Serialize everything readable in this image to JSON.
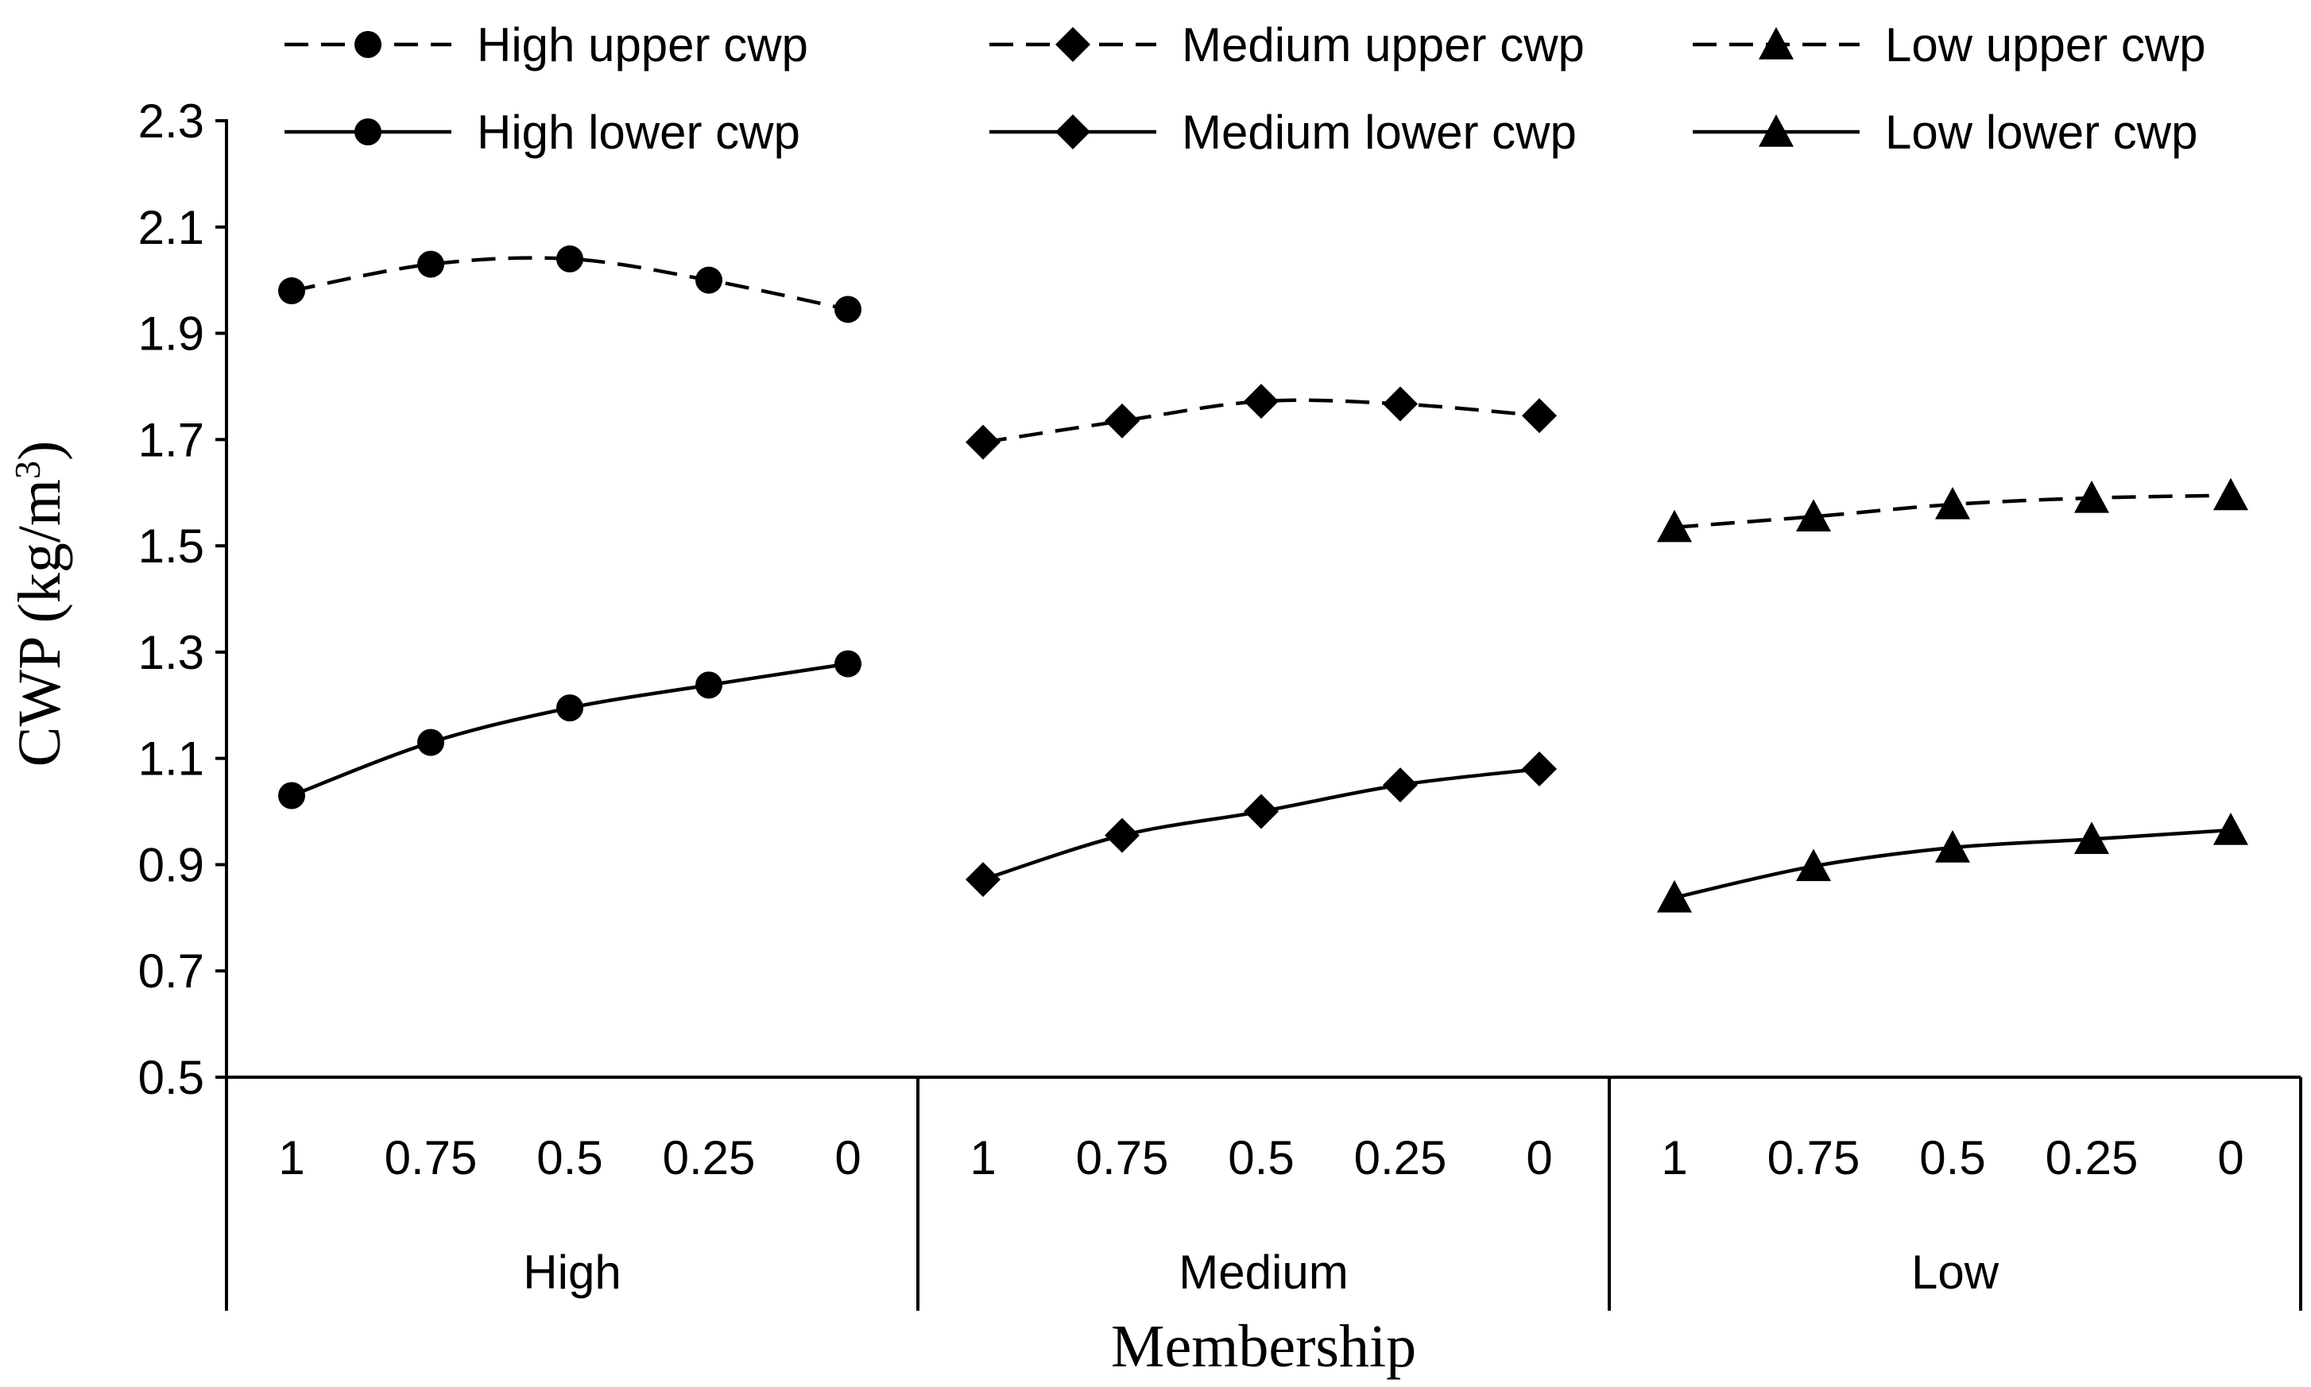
{
  "chart_data": {
    "type": "line",
    "xlabel": "Membership",
    "ylabel": "CWP (kg/m",
    "ylabel_superscript": "3",
    "ylabel_suffix": ")",
    "ylim": [
      0.5,
      2.3
    ],
    "yticks": [
      "0.5",
      "0.7",
      "0.9",
      "1.1",
      "1.3",
      "1.5",
      "1.7",
      "1.9",
      "2.1",
      "2.3"
    ],
    "groups": [
      "High",
      "Medium",
      "Low"
    ],
    "x_ticks": [
      "1",
      "0.75",
      "0.5",
      "0.25",
      "0"
    ],
    "legend_position": "top",
    "grid": false,
    "series": [
      {
        "name": "High upper cwp",
        "group": 0,
        "marker": "circle",
        "dash": true,
        "values": [
          1.98,
          2.03,
          2.04,
          2.0,
          1.945
        ]
      },
      {
        "name": "Medium upper cwp",
        "group": 1,
        "marker": "diamond",
        "dash": true,
        "values": [
          1.695,
          1.735,
          1.772,
          1.767,
          1.745
        ]
      },
      {
        "name": "Low upper cwp",
        "group": 2,
        "marker": "triangle",
        "dash": true,
        "values": [
          1.535,
          1.555,
          1.578,
          1.59,
          1.595
        ]
      },
      {
        "name": "High lower cwp",
        "group": 0,
        "marker": "circle",
        "dash": false,
        "values": [
          1.03,
          1.13,
          1.195,
          1.238,
          1.278
        ]
      },
      {
        "name": "Medium lower cwp",
        "group": 1,
        "marker": "diamond",
        "dash": false,
        "values": [
          0.872,
          0.955,
          1.0,
          1.05,
          1.08
        ]
      },
      {
        "name": "Low lower cwp",
        "group": 2,
        "marker": "triangle",
        "dash": false,
        "values": [
          0.838,
          0.897,
          0.932,
          0.948,
          0.965
        ]
      }
    ]
  }
}
